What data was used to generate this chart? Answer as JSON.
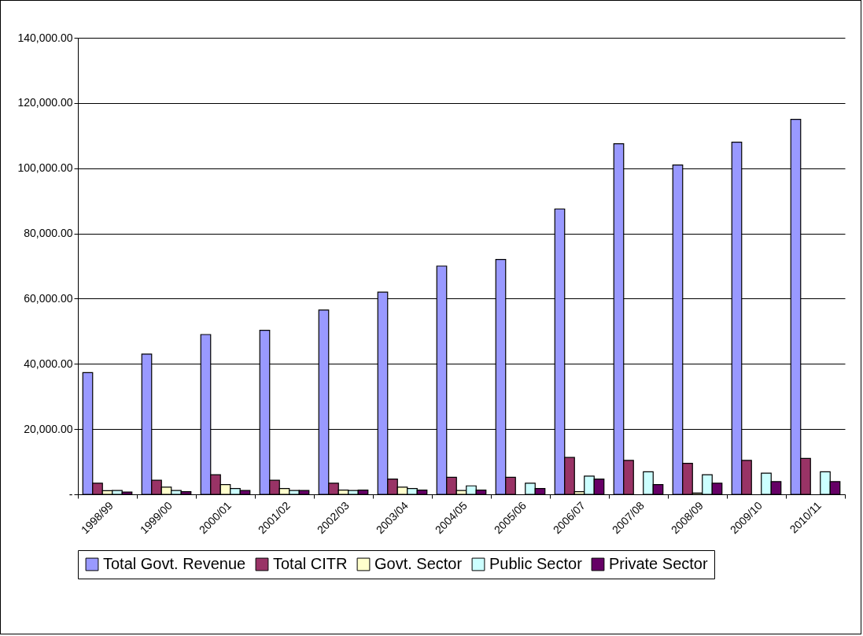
{
  "chart_data": {
    "type": "bar",
    "categories": [
      "1998/99",
      "1999/00",
      "2000/01",
      "2001/02",
      "2002/03",
      "2003/04",
      "2004/05",
      "2005/06",
      "2006/07",
      "2007/08",
      "2008/09",
      "2009/10",
      "2010/11"
    ],
    "series": [
      {
        "name": "Total Govt. Revenue",
        "color": "#9999ff",
        "values": [
          37300,
          43000,
          49000,
          50300,
          56500,
          62000,
          70000,
          72000,
          87500,
          107500,
          101000,
          108000,
          115000
        ]
      },
      {
        "name": "Total CITR",
        "color": "#993366",
        "values": [
          3400,
          4300,
          6000,
          4300,
          3400,
          4700,
          5200,
          5200,
          11300,
          10400,
          9500,
          10400,
          11000
        ]
      },
      {
        "name": "Govt. Sector",
        "color": "#ffffcc",
        "values": [
          1100,
          2200,
          3000,
          1800,
          1300,
          2200,
          1200,
          null,
          800,
          null,
          400,
          null,
          null
        ]
      },
      {
        "name": "Public Sector",
        "color": "#ccffff",
        "values": [
          1200,
          1200,
          1800,
          1200,
          1200,
          1800,
          2600,
          3400,
          5600,
          6900,
          6000,
          6500,
          6900
        ]
      },
      {
        "name": "Private Sector",
        "color": "#660066",
        "values": [
          700,
          800,
          1200,
          1200,
          1300,
          1300,
          1300,
          1800,
          4700,
          3000,
          3400,
          3900,
          3900
        ]
      }
    ],
    "ylim": [
      0,
      140000
    ],
    "yticks": [
      {
        "value": 0,
        "label": "-"
      },
      {
        "value": 20000,
        "label": "20,000.00"
      },
      {
        "value": 40000,
        "label": "40,000.00"
      },
      {
        "value": 60000,
        "label": "60,000.00"
      },
      {
        "value": 80000,
        "label": "80,000.00"
      },
      {
        "value": 100000,
        "label": "100,000.00"
      },
      {
        "value": 120000,
        "label": "120,000.00"
      },
      {
        "value": 140000,
        "label": "140,000.00"
      }
    ],
    "grid": "y",
    "legend": "bottom"
  }
}
